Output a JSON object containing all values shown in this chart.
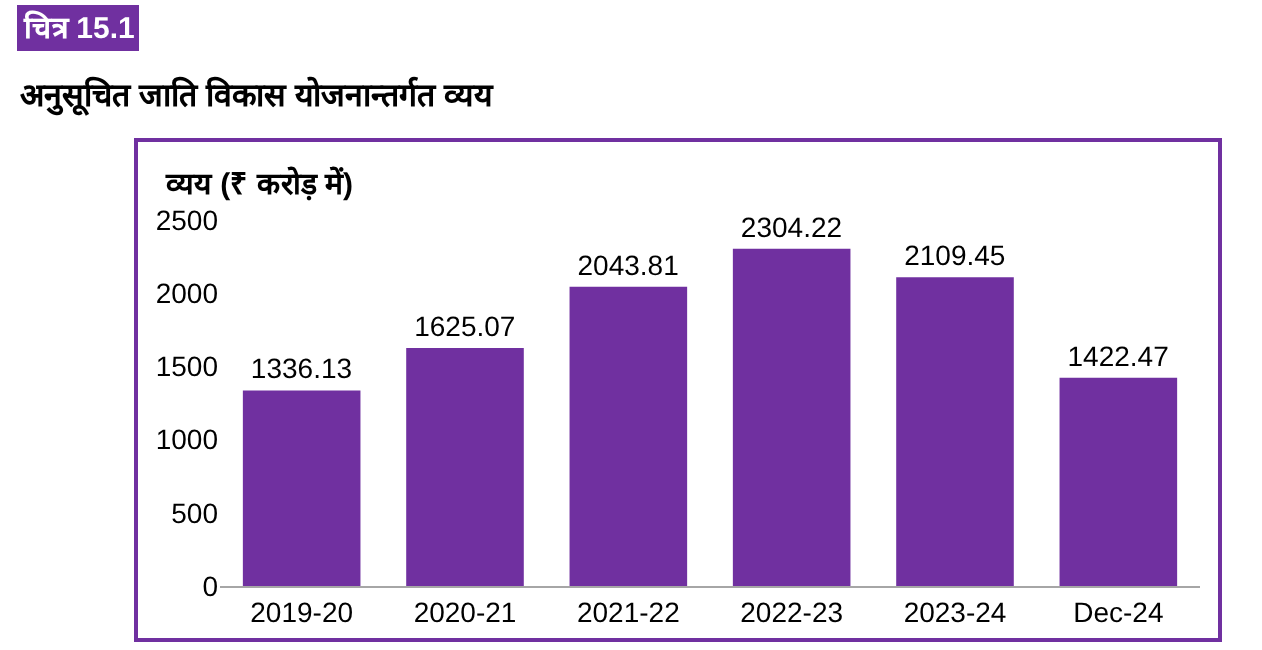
{
  "chart_data": {
    "type": "bar",
    "title": "चित्र 15.1",
    "subtitle": "अनुसूचित जाति विकास योजनान्तर्गत व्यय",
    "ylabel": "व्यय (₹ करोड़ में)",
    "categories": [
      "2019-20",
      "2020-21",
      "2021-22",
      "2022-23",
      "2023-24",
      "Dec-24"
    ],
    "values": [
      1336.13,
      1625.07,
      2043.81,
      2304.22,
      2109.45,
      1422.47
    ],
    "color": "#7030a0",
    "ylim": [
      0,
      2500
    ],
    "yticks": [
      0,
      500,
      1000,
      1500,
      2000,
      2500
    ],
    "data_labels": true
  }
}
